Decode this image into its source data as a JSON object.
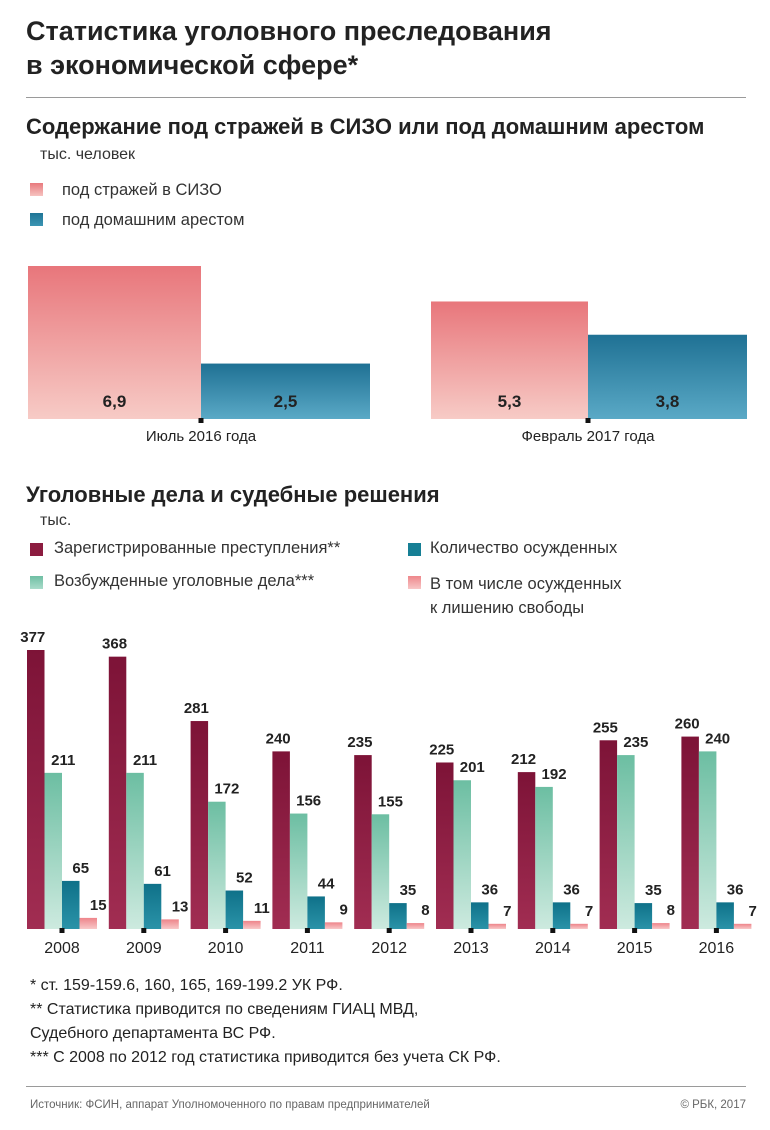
{
  "header": {
    "title_line1": "Статистика уголовного преследования",
    "title_line2": "в экономической сфере*"
  },
  "chart_data": [
    {
      "type": "bar",
      "title": "Содержание под стражей в СИЗО или под домашним арестом",
      "unit": "тыс. человек",
      "categories": [
        "Июль 2016 года",
        "Февраль 2017 года"
      ],
      "series": [
        {
          "name": "под стражей в СИЗО",
          "color": "#e8797d",
          "values": [
            6.9,
            5.3
          ],
          "labels": [
            "6,9",
            "5,3"
          ]
        },
        {
          "name": "под домашним арестом",
          "color": "#2f86a6",
          "values": [
            2.5,
            3.8
          ],
          "labels": [
            "2,5",
            "3,8"
          ]
        }
      ],
      "ylim": [
        0,
        6.9
      ]
    },
    {
      "type": "bar",
      "title": "Уголовные дела и судебные решения",
      "unit": "тыс.",
      "categories": [
        "2008",
        "2009",
        "2010",
        "2011",
        "2012",
        "2013",
        "2014",
        "2015",
        "2016"
      ],
      "series": [
        {
          "name": "Зарегистрированные преступления**",
          "color": "#8c1c40",
          "values": [
            377,
            368,
            281,
            240,
            235,
            225,
            212,
            255,
            260
          ]
        },
        {
          "name": "Возбужденные уголовные дела***",
          "color": "#7fc7ad",
          "values": [
            211,
            211,
            172,
            156,
            155,
            201,
            192,
            235,
            240
          ]
        },
        {
          "name": "Количество осужденных",
          "color": "#167f95",
          "values": [
            65,
            61,
            52,
            44,
            35,
            36,
            36,
            35,
            36
          ]
        },
        {
          "name": "В том числе  осужденных к лишению свободы",
          "label_line1": "В том числе  осужденных",
          "label_line2": "к лишению свободы",
          "color": "#f08f92",
          "values": [
            15,
            13,
            11,
            9,
            8,
            7,
            7,
            8,
            7
          ]
        }
      ],
      "ylim": [
        0,
        377
      ]
    }
  ],
  "footnotes": {
    "f1": "* ст. 159-159.6, 160, 165, 169-199.2 УК РФ.",
    "f2a": "** Статистика приводится по сведениям ГИАЦ МВД,",
    "f2b": "Судебного департамента ВС РФ.",
    "f3": "*** С 2008 по 2012 год статистика приводится без учета СК РФ."
  },
  "source": {
    "text": "Источник: ФСИН, аппарат Уполномоченного по правам предпринимателей",
    "copyright": "© РБК, 2017"
  }
}
